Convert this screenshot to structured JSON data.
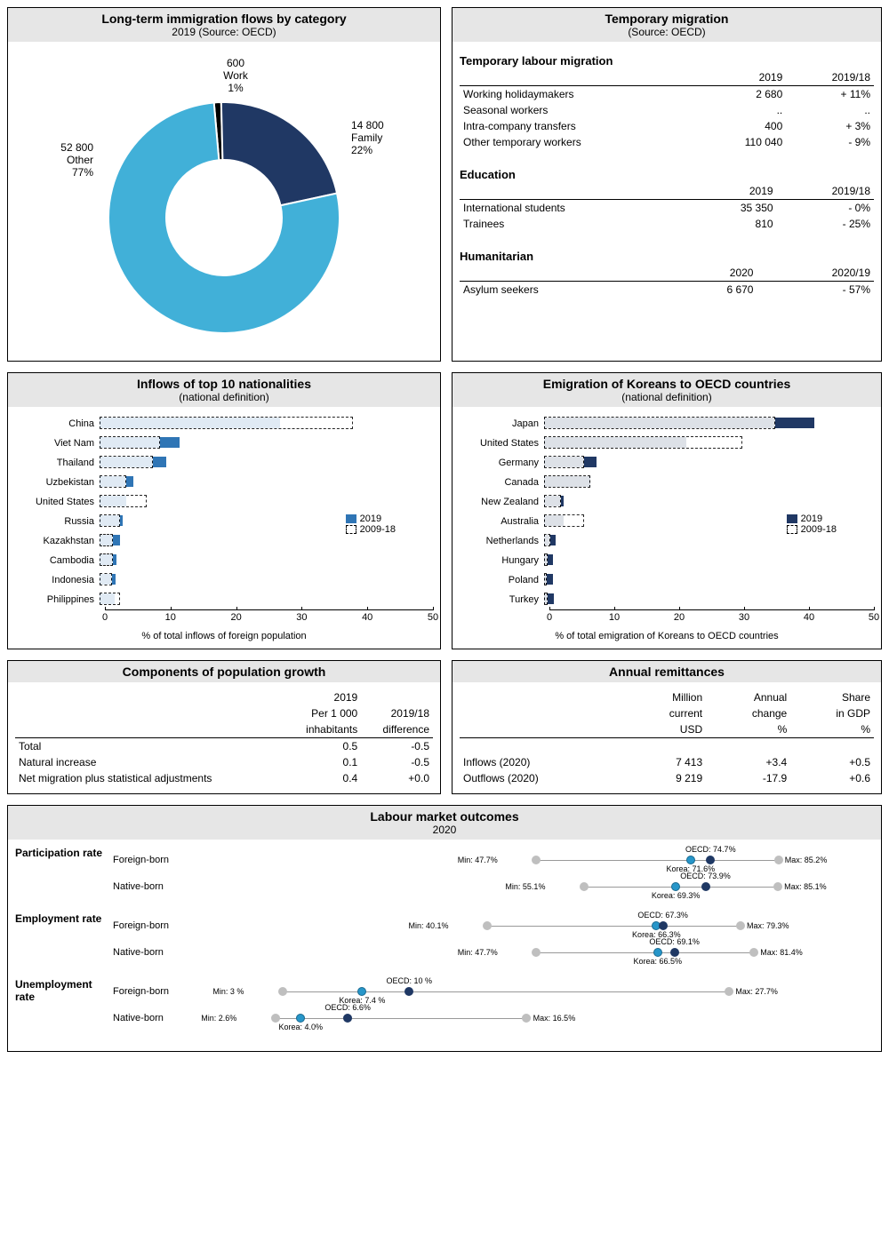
{
  "donut": {
    "title": "Long-term immigration flows by category",
    "subtitle": "2019 (Source: OECD)",
    "type": "donut",
    "slices": [
      {
        "label": "Work",
        "value": 600,
        "pct": 1,
        "color": "#000000"
      },
      {
        "label": "Family",
        "value": 14800,
        "pct": 22,
        "color": "#203864"
      },
      {
        "label": "Other",
        "value": 52800,
        "pct": 77,
        "color": "#41b0d8"
      }
    ],
    "bg": "#ffffff"
  },
  "temp": {
    "title": "Temporary migration",
    "subtitle": "(Source: OECD)",
    "labour_title": "Temporary labour migration",
    "education_title": "Education",
    "humanitarian_title": "Humanitarian",
    "cols": [
      "2019",
      "2019/18"
    ],
    "cols_hum": [
      "2020",
      "2020/19"
    ],
    "labour": [
      {
        "name": "Working holidaymakers",
        "v": "2 680",
        "d": "+ 11%"
      },
      {
        "name": "Seasonal workers",
        "v": "..",
        "d": ".."
      },
      {
        "name": "Intra-company transfers",
        "v": "400",
        "d": "+ 3%"
      },
      {
        "name": "Other temporary workers",
        "v": "110 040",
        "d": "- 9%"
      }
    ],
    "edu": [
      {
        "name": "International students",
        "v": "35 350",
        "d": "- 0%"
      },
      {
        "name": "Trainees",
        "v": "810",
        "d": "- 25%"
      }
    ],
    "hum": [
      {
        "name": "Asylum seekers",
        "v": "6 670",
        "d": "- 57%"
      }
    ]
  },
  "inflows": {
    "title": "Inflows of top 10 nationalities",
    "subtitle": "(national definition)",
    "xmax": 50,
    "axis_title": "% of total inflows of foreign population",
    "color": "#2f75b5",
    "rows": [
      {
        "name": "China",
        "v": 27,
        "avg": 38
      },
      {
        "name": "Viet Nam",
        "v": 12,
        "avg": 9
      },
      {
        "name": "Thailand",
        "v": 10,
        "avg": 8
      },
      {
        "name": "Uzbekistan",
        "v": 5,
        "avg": 4
      },
      {
        "name": "United States",
        "v": 4,
        "avg": 7
      },
      {
        "name": "Russia",
        "v": 3.5,
        "avg": 3
      },
      {
        "name": "Kazakhstan",
        "v": 3,
        "avg": 2
      },
      {
        "name": "Cambodia",
        "v": 2.6,
        "avg": 2
      },
      {
        "name": "Indonesia",
        "v": 2.4,
        "avg": 1.8
      },
      {
        "name": "Philippines",
        "v": 2.2,
        "avg": 3
      }
    ],
    "leg2019": "2019",
    "legAvg": "2009-18"
  },
  "emigration": {
    "title": "Emigration of Koreans to OECD countries",
    "subtitle": "(national definition)",
    "xmax": 50,
    "axis_title": "% of total emigration of Koreans to OECD countries",
    "color": "#203864",
    "rows": [
      {
        "name": "Japan",
        "v": 41,
        "avg": 35
      },
      {
        "name": "United States",
        "v": 21.5,
        "avg": 30
      },
      {
        "name": "Germany",
        "v": 8,
        "avg": 6
      },
      {
        "name": "Canada",
        "v": 7,
        "avg": 7
      },
      {
        "name": "New Zealand",
        "v": 3,
        "avg": 2.5
      },
      {
        "name": "Australia",
        "v": 3,
        "avg": 6
      },
      {
        "name": "Netherlands",
        "v": 1.7,
        "avg": 1
      },
      {
        "name": "Hungary",
        "v": 1.4,
        "avg": 0.5
      },
      {
        "name": "Poland",
        "v": 1.3,
        "avg": 0.4
      },
      {
        "name": "Turkey",
        "v": 1.5,
        "avg": 0.5
      }
    ],
    "leg2019": "2019",
    "legAvg": "2009-18"
  },
  "popgrowth": {
    "title": "Components of population growth",
    "h1": "2019",
    "h2": "Per 1 000",
    "h3": "inhabitants",
    "h4": "2019/18",
    "h5": "difference",
    "rows": [
      {
        "name": "Total",
        "a": "0.5",
        "b": "-0.5"
      },
      {
        "name": "Natural increase",
        "a": "0.1",
        "b": "-0.5"
      },
      {
        "name": "Net migration plus statistical adjustments",
        "a": "0.4",
        "b": "+0.0"
      }
    ]
  },
  "remit": {
    "title": "Annual remittances",
    "h": [
      "Million",
      "current",
      "USD",
      "Annual",
      "change",
      "%",
      "Share",
      "in GDP",
      "%"
    ],
    "rows": [
      {
        "name": "Inflows (2020)",
        "a": "7 413",
        "b": "+3.4",
        "c": "+0.5"
      },
      {
        "name": "Outflows (2020)",
        "a": "9 219",
        "b": "-17.9",
        "c": "+0.6"
      }
    ]
  },
  "labour": {
    "title": "Labour market outcomes",
    "subtitle": "2020",
    "xmin": 0,
    "xmax": 100,
    "groups": [
      {
        "name": "Participation rate",
        "rows": [
          {
            "label": "Foreign-born",
            "min": 47.7,
            "max": 85.2,
            "korea": 71.6,
            "oecd": 74.7,
            "minTxt": "Min: 47.7%",
            "maxTxt": "Max: 85.2%",
            "koreaTxt": "Korea: 71.6%",
            "oecdTxt": "OECD: 74.7%"
          },
          {
            "label": "Native-born",
            "min": 55.1,
            "max": 85.1,
            "korea": 69.3,
            "oecd": 73.9,
            "minTxt": "Min: 55.1%",
            "maxTxt": "Max: 85.1%",
            "koreaTxt": "Korea: 69.3%",
            "oecdTxt": "OECD: 73.9%"
          }
        ]
      },
      {
        "name": "Employment rate",
        "rows": [
          {
            "label": "Foreign-born",
            "min": 40.1,
            "max": 79.3,
            "korea": 66.3,
            "oecd": 67.3,
            "minTxt": "Min: 40.1%",
            "maxTxt": "Max: 79.3%",
            "koreaTxt": "Korea: 66.3%",
            "oecdTxt": "OECD: 67.3%"
          },
          {
            "label": "Native-born",
            "min": 47.7,
            "max": 81.4,
            "korea": 66.5,
            "oecd": 69.1,
            "minTxt": "Min: 47.7%",
            "maxTxt": "Max: 81.4%",
            "koreaTxt": "Korea: 66.5%",
            "oecdTxt": "OECD: 69.1%"
          }
        ]
      },
      {
        "name": "Unemployment rate",
        "rows": [
          {
            "label": "Foreign-born",
            "min": 3,
            "max": 27.7,
            "korea": 7.4,
            "oecd": 10,
            "minTxt": "Min: 3 %",
            "maxTxt": "Max: 27.7%",
            "koreaTxt": "Korea: 7.4 %",
            "oecdTxt": "OECD: 10 %",
            "scale": 2.8
          },
          {
            "label": "Native-born",
            "min": 2.6,
            "max": 16.5,
            "korea": 4.0,
            "oecd": 6.6,
            "minTxt": "Min: 2.6%",
            "maxTxt": "Max: 16.5%",
            "koreaTxt": "Korea: 4.0%",
            "oecdTxt": "OECD: 6.6%",
            "scale": 2.8
          }
        ]
      }
    ]
  }
}
